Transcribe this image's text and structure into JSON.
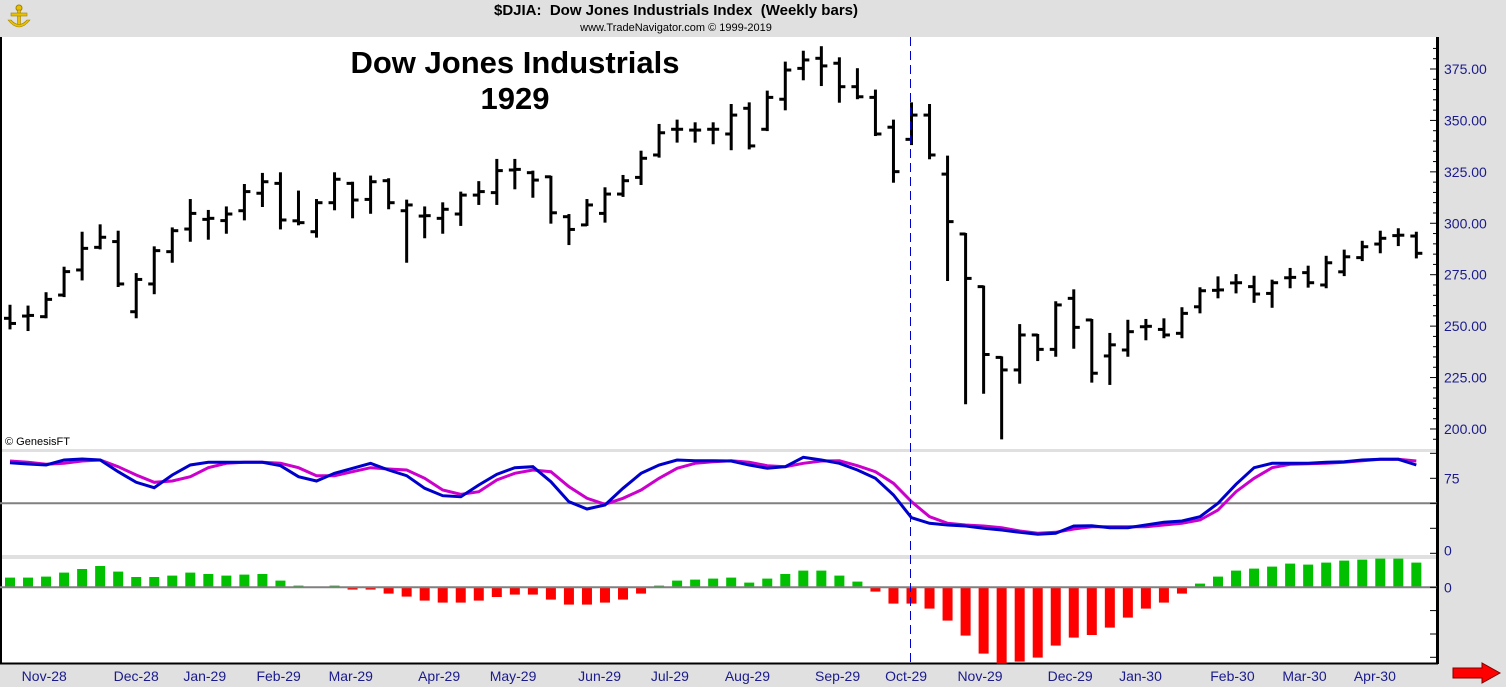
{
  "header": {
    "title": "$DJIA:  Dow Jones Industrials Index  (Weekly bars)",
    "subtitle": "www.TradeNavigator.com © 1999-2019"
  },
  "annotation": {
    "line1": "Dow Jones Industrials",
    "line2": "1929"
  },
  "copyright": "© GenesisFT",
  "colors": {
    "bars": "#000000",
    "fast_line": "#0000cc",
    "slow_line": "#cc00cc",
    "hist_pos": "#00c000",
    "hist_neg": "#ff0000",
    "axis_text": "#1a1a8c",
    "marker_line": "#0000cc"
  },
  "marker_bar_index": 51,
  "chart_data": [
    {
      "type": "ohlc",
      "title": "$DJIA: Dow Jones Industrials Index (Weekly bars)",
      "ylim": [
        190,
        390
      ],
      "yticks": [
        375,
        350,
        325,
        300,
        275,
        250,
        225,
        200
      ],
      "ytick_labels": [
        "375.00",
        "350.00",
        "325.00",
        "300.00",
        "275.00",
        "250.00",
        "225.00",
        "200.00"
      ],
      "ohlc": [
        [
          253.8,
          259.9,
          248.9,
          251.3
        ],
        [
          254.9,
          259.5,
          248.1,
          255.2
        ],
        [
          254.6,
          266.0,
          254.3,
          263.0
        ],
        [
          265.1,
          278.4,
          264.6,
          276.5
        ],
        [
          277.3,
          295.4,
          272.7,
          287.8
        ],
        [
          288.3,
          299.0,
          287.8,
          293.2
        ],
        [
          291.1,
          295.9,
          269.5,
          270.5
        ],
        [
          257.0,
          275.3,
          254.3,
          272.7
        ],
        [
          270.5,
          288.3,
          266.0,
          286.7
        ],
        [
          286.2,
          297.5,
          281.3,
          296.4
        ],
        [
          297.2,
          311.3,
          291.5,
          304.8
        ],
        [
          301.9,
          306.0,
          292.5,
          302.4
        ],
        [
          301.3,
          307.7,
          295.4,
          304.5
        ],
        [
          306.1,
          318.6,
          301.9,
          315.4
        ],
        [
          314.6,
          324.0,
          308.4,
          320.2
        ],
        [
          319.4,
          324.3,
          297.5,
          301.6
        ],
        [
          301.2,
          315.4,
          299.5,
          300.3
        ],
        [
          295.9,
          311.3,
          293.5,
          310.0
        ],
        [
          310.0,
          324.3,
          306.8,
          321.4
        ],
        [
          319.4,
          319.7,
          302.9,
          311.3
        ],
        [
          311.6,
          322.7,
          305.1,
          320.2
        ],
        [
          320.7,
          321.4,
          307.3,
          310.0
        ],
        [
          306.1,
          311.0,
          281.3,
          308.9
        ],
        [
          303.5,
          307.7,
          293.2,
          303.7
        ],
        [
          302.4,
          309.7,
          295.4,
          306.8
        ],
        [
          304.5,
          314.9,
          299.2,
          313.7
        ],
        [
          313.7,
          320.0,
          309.4,
          315.4
        ],
        [
          314.9,
          330.8,
          309.4,
          325.6
        ],
        [
          325.9,
          330.8,
          317.0,
          326.2
        ],
        [
          324.6,
          325.1,
          312.9,
          321.0
        ],
        [
          322.6,
          322.6,
          300.3,
          305.1
        ],
        [
          303.2,
          304.0,
          289.9,
          297.0
        ],
        [
          299.2,
          311.3,
          299.2,
          308.9
        ],
        [
          304.8,
          317.0,
          300.8,
          314.2
        ],
        [
          314.2,
          323.0,
          313.3,
          320.7
        ],
        [
          322.3,
          334.8,
          319.1,
          331.6
        ],
        [
          333.2,
          347.8,
          332.4,
          344.0
        ],
        [
          345.7,
          349.9,
          339.7,
          345.7
        ],
        [
          345.3,
          348.6,
          339.7,
          345.3
        ],
        [
          345.7,
          348.6,
          338.9,
          345.7
        ],
        [
          343.4,
          357.5,
          336.0,
          352.6
        ],
        [
          355.9,
          358.3,
          336.4,
          337.6
        ],
        [
          345.7,
          364.0,
          345.3,
          361.2
        ],
        [
          360.3,
          378.1,
          355.4,
          374.5
        ],
        [
          375.3,
          383.4,
          370.0,
          379.4
        ],
        [
          380.2,
          385.6,
          367.2,
          376.5
        ],
        [
          377.8,
          380.2,
          359.1,
          366.4
        ],
        [
          366.4,
          374.9,
          360.8,
          361.5
        ],
        [
          361.2,
          364.5,
          342.9,
          343.4
        ],
        [
          346.7,
          349.9,
          320.2,
          325.1
        ],
        [
          340.8,
          358.3,
          338.5,
          352.6
        ],
        [
          352.6,
          357.5,
          331.6,
          333.2
        ],
        [
          323.9,
          332.4,
          272.4,
          300.8
        ],
        [
          294.8,
          294.8,
          212.5,
          273.2
        ],
        [
          269.2,
          269.2,
          217.6,
          236.2
        ],
        [
          234.8,
          234.8,
          195.4,
          228.7
        ],
        [
          228.7,
          250.5,
          222.5,
          245.7
        ],
        [
          245.7,
          245.7,
          233.5,
          238.7
        ],
        [
          238.7,
          261.6,
          235.6,
          260.3
        ],
        [
          263.5,
          267.4,
          239.5,
          249.4
        ],
        [
          253.0,
          253.0,
          223.0,
          227.1
        ],
        [
          235.5,
          246.2,
          221.9,
          240.9
        ],
        [
          238.4,
          252.6,
          235.6,
          247.3
        ],
        [
          249.7,
          253.0,
          243.6,
          249.9
        ],
        [
          248.4,
          253.3,
          244.6,
          245.7
        ],
        [
          246.5,
          258.7,
          244.6,
          256.2
        ],
        [
          259.4,
          268.4,
          256.7,
          267.2
        ],
        [
          267.4,
          273.7,
          264.0,
          267.6
        ],
        [
          271.0,
          274.8,
          266.4,
          271.1
        ],
        [
          269.2,
          274.0,
          261.8,
          265.6
        ],
        [
          265.9,
          272.1,
          259.4,
          271.1
        ],
        [
          273.5,
          277.8,
          268.9,
          273.7
        ],
        [
          276.0,
          278.9,
          269.2,
          271.1
        ],
        [
          270.0,
          283.7,
          268.9,
          280.8
        ],
        [
          276.4,
          286.7,
          274.8,
          283.7
        ],
        [
          283.3,
          291.0,
          282.1,
          288.6
        ],
        [
          289.9,
          295.9,
          285.9,
          292.7
        ],
        [
          294.0,
          297.1,
          289.4,
          294.2
        ],
        [
          293.8,
          295.4,
          283.4,
          285.4
        ]
      ]
    },
    {
      "type": "line",
      "ylim": [
        0,
        100
      ],
      "yticks": [
        100,
        75,
        50,
        25,
        0
      ],
      "ytick_labels": [
        "75",
        "0"
      ],
      "ytick_label_values": [
        75,
        0
      ],
      "reference_line": 50,
      "series": [
        {
          "name": "fast",
          "values": [
            90.6,
            89.3,
            88.3,
            93.3,
            94.3,
            93.3,
            81.6,
            71,
            65.6,
            78.3,
            88.3,
            91,
            91,
            91,
            91,
            87.6,
            76.6,
            72.3,
            80,
            85,
            90,
            83.3,
            77.6,
            65,
            57.6,
            56.6,
            68.3,
            79,
            85.6,
            86.6,
            71.6,
            51.6,
            44.3,
            48.3,
            65,
            80,
            88.3,
            93.3,
            92.6,
            92.6,
            92.3,
            88.3,
            85,
            86.6,
            96,
            93.3,
            90,
            83.3,
            75,
            58.3,
            35.6,
            30,
            28.3,
            27.3,
            25,
            23.3,
            21,
            19,
            20,
            27.3,
            27.6,
            25.6,
            25.6,
            28.3,
            31,
            32.3,
            36.6,
            50,
            69,
            85.6,
            90,
            90,
            90,
            91,
            91.6,
            93.3,
            94,
            94,
            88.3
          ]
        },
        {
          "name": "slow",
          "values": [
            92.3,
            91,
            89,
            90,
            92.3,
            93.3,
            86.6,
            78.3,
            71,
            72.3,
            76.6,
            85.6,
            90,
            91,
            91,
            90,
            85.6,
            77.6,
            77.6,
            81.6,
            85.6,
            84.3,
            83.3,
            75,
            63.3,
            59,
            61.6,
            73.3,
            80,
            83.3,
            81.6,
            66.6,
            55,
            49,
            55,
            63.3,
            75,
            85,
            90,
            91.6,
            92.6,
            91,
            87.6,
            86.6,
            90,
            92.3,
            92.6,
            87.6,
            81.6,
            70,
            51.6,
            36.6,
            30,
            28.3,
            27.3,
            25.6,
            22.3,
            20,
            21,
            24.3,
            26.6,
            26.6,
            26.6,
            26.6,
            28.3,
            30,
            33.3,
            43.3,
            61.6,
            75,
            85.6,
            89,
            89.6,
            90,
            91,
            92.6,
            94,
            94,
            92.3
          ]
        }
      ]
    },
    {
      "type": "bar",
      "ylim": [
        -77,
        29
      ],
      "ytick_labels": [
        "0"
      ],
      "values": [
        9.7,
        9.7,
        10.7,
        14.7,
        18.3,
        21.3,
        15.7,
        10.3,
        10.3,
        11.7,
        14.7,
        13.3,
        11.7,
        12.7,
        13.3,
        6.7,
        1.7,
        0,
        1.7,
        -2.3,
        -2.3,
        -6.3,
        -9.3,
        -13.3,
        -15.3,
        -15.3,
        -13.3,
        -9.7,
        -7.3,
        -7.3,
        -12.3,
        -17.3,
        -17.3,
        -15.3,
        -12.3,
        -6.3,
        1.7,
        6.7,
        7.7,
        8.7,
        9.7,
        4.7,
        8.7,
        13.3,
        16.7,
        16.7,
        11.7,
        5.7,
        -4.3,
        -16.3,
        -16.3,
        -21.3,
        -33.3,
        -48.3,
        -66.3,
        -76.3,
        -74.3,
        -70.3,
        -58.3,
        -50.3,
        -47.7,
        -40.3,
        -30.3,
        -21.3,
        -15.3,
        -6.3,
        3.7,
        10.7,
        16.7,
        18.7,
        20.7,
        23.7,
        22.7,
        24.7,
        26.7,
        27.7,
        28.7,
        28.7,
        24.7
      ],
      "xtick_labels": [
        {
          "label": "Nov-28",
          "bar": 2.9
        },
        {
          "label": "Dec-28",
          "bar": 8.0
        },
        {
          "label": "Jan-29",
          "bar": 11.8
        },
        {
          "label": "Feb-29",
          "bar": 15.9
        },
        {
          "label": "Mar-29",
          "bar": 19.9
        },
        {
          "label": "Apr-29",
          "bar": 24.8
        },
        {
          "label": "May-29",
          "bar": 28.9
        },
        {
          "label": "Jun-29",
          "bar": 33.7
        },
        {
          "label": "Jul-29",
          "bar": 37.6
        },
        {
          "label": "Aug-29",
          "bar": 41.9
        },
        {
          "label": "Sep-29",
          "bar": 46.9
        },
        {
          "label": "Oct-29",
          "bar": 50.7
        },
        {
          "label": "Nov-29",
          "bar": 54.8
        },
        {
          "label": "Dec-29",
          "bar": 59.8
        },
        {
          "label": "Jan-30",
          "bar": 63.7
        },
        {
          "label": "Feb-30",
          "bar": 68.8
        },
        {
          "label": "Mar-30",
          "bar": 72.8
        },
        {
          "label": "Apr-30",
          "bar": 76.7
        }
      ]
    }
  ]
}
